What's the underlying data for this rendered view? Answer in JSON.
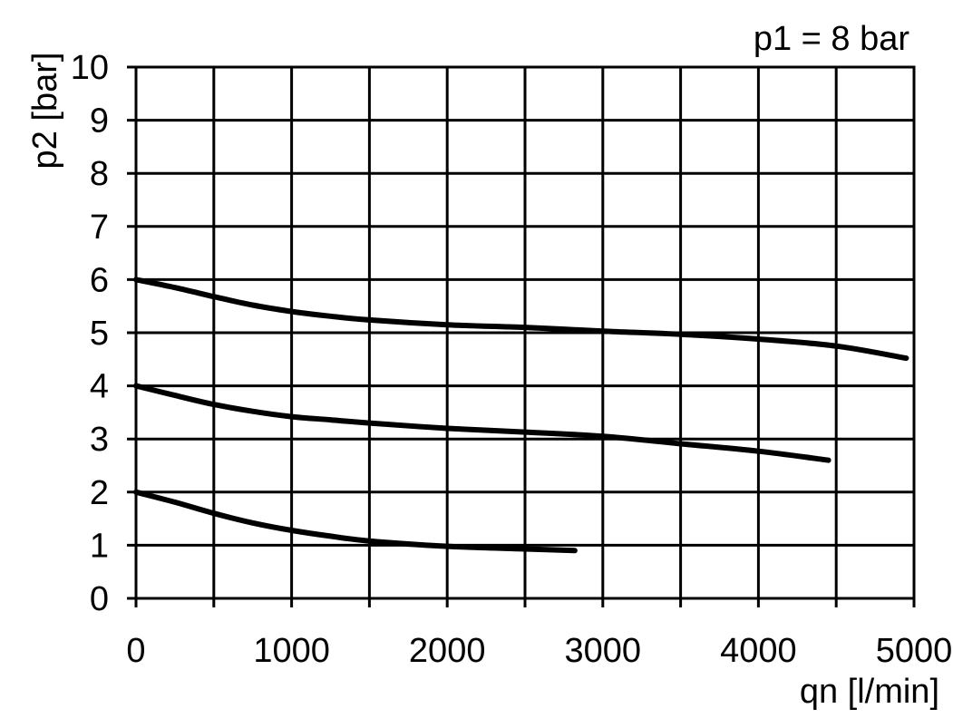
{
  "chart_data": {
    "type": "line",
    "title": "",
    "annotation": "p1 = 8 bar",
    "xlabel": "qn [l/min]",
    "ylabel": "p2 [bar]",
    "xlim": [
      0,
      5000
    ],
    "ylim": [
      0,
      10
    ],
    "grid": true,
    "x_ticks": [
      0,
      500,
      1000,
      1500,
      2000,
      2500,
      3000,
      3500,
      4000,
      4500,
      5000
    ],
    "x_tick_labels": [
      "0",
      "",
      "1000",
      "",
      "2000",
      "",
      "3000",
      "",
      "4000",
      "",
      "5000"
    ],
    "y_ticks": [
      0,
      1,
      2,
      3,
      4,
      5,
      6,
      7,
      8,
      9,
      10
    ],
    "y_tick_labels": [
      "0",
      "1",
      "2",
      "3",
      "4",
      "5",
      "6",
      "7",
      "8",
      "9",
      "10"
    ],
    "series": [
      {
        "x": [
          0,
          250,
          500,
          750,
          1000,
          1250,
          1500,
          2000,
          2500,
          3000,
          3500,
          4000,
          4500,
          4950
        ],
        "y": [
          6.0,
          5.85,
          5.68,
          5.52,
          5.4,
          5.31,
          5.24,
          5.15,
          5.1,
          5.03,
          4.97,
          4.88,
          4.75,
          4.52
        ]
      },
      {
        "x": [
          0,
          250,
          500,
          750,
          1000,
          1250,
          1500,
          2000,
          2500,
          3000,
          3500,
          4000,
          4450
        ],
        "y": [
          4.0,
          3.82,
          3.65,
          3.52,
          3.42,
          3.36,
          3.3,
          3.2,
          3.13,
          3.05,
          2.91,
          2.77,
          2.6
        ]
      },
      {
        "x": [
          0,
          250,
          500,
          750,
          1000,
          1250,
          1500,
          2000,
          2500,
          2820
        ],
        "y": [
          2.0,
          1.81,
          1.6,
          1.42,
          1.28,
          1.17,
          1.08,
          0.98,
          0.93,
          0.9
        ]
      }
    ]
  },
  "colors": {
    "line": "#000000",
    "grid": "#000000",
    "background": "#ffffff"
  }
}
